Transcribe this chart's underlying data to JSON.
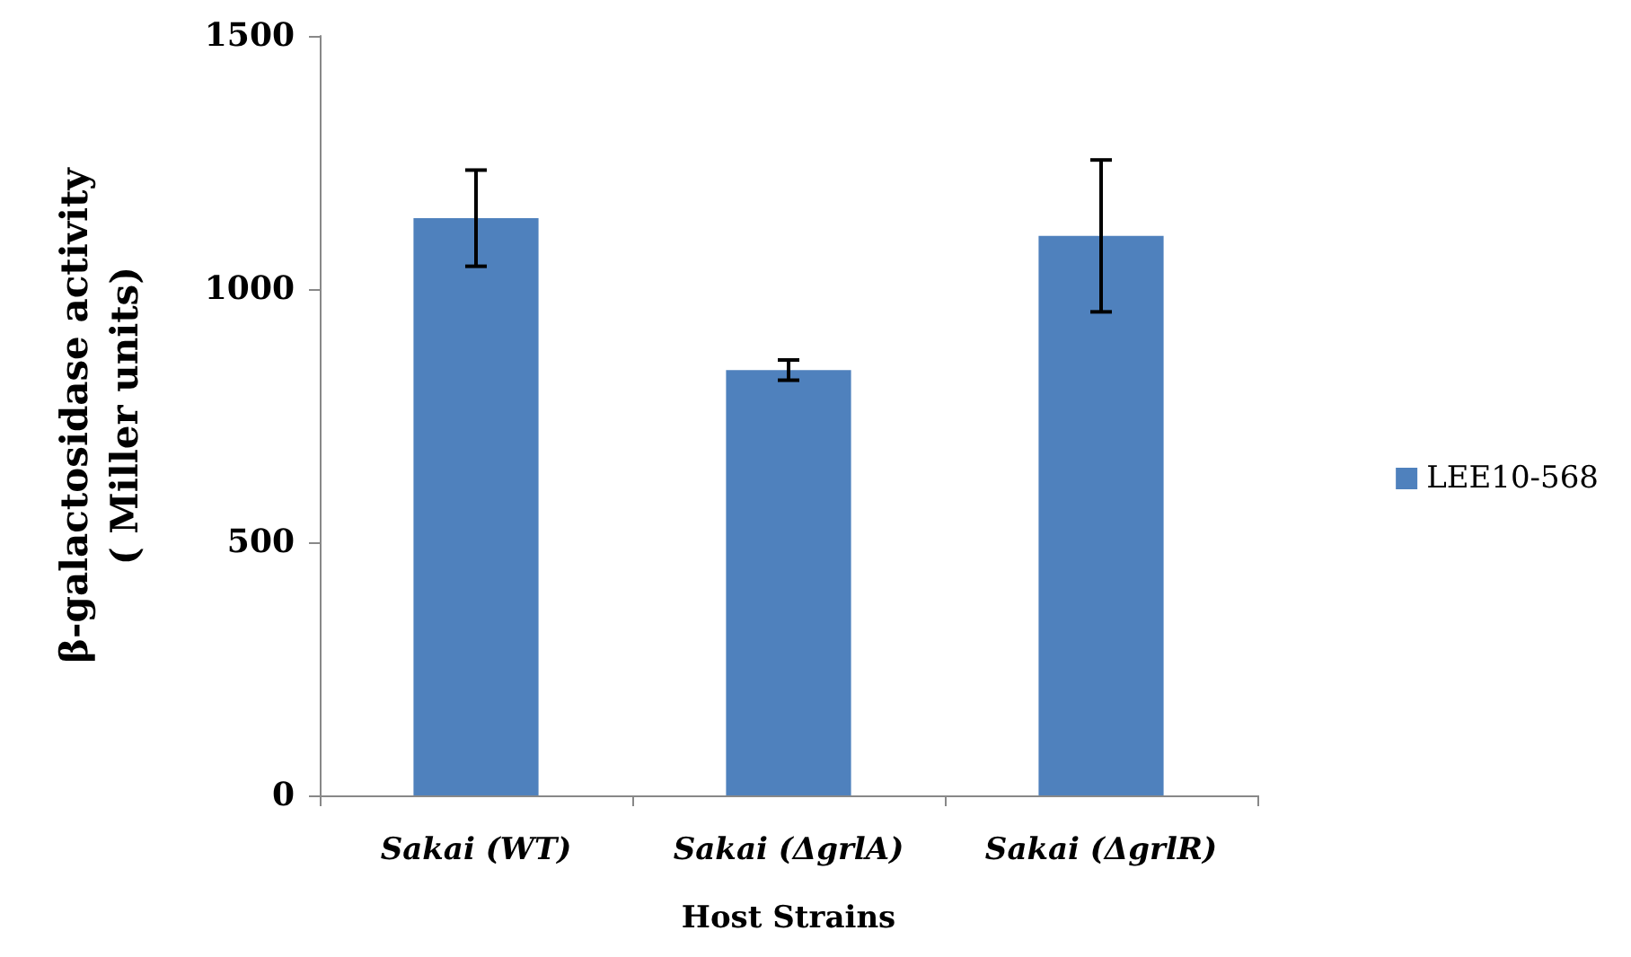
{
  "chart_data": {
    "type": "bar",
    "xlabel": "Host Strains",
    "ylabel": "β-galactosidase activity\n( Miller units)",
    "categories": [
      "Sakai (WT)",
      "Sakai (ΔgrlA)",
      "Sakai (ΔgrlR)"
    ],
    "series": [
      {
        "name": "LEE10-568",
        "color": "#4f81bd",
        "values": [
          1140,
          840,
          1105
        ],
        "errors": [
          95,
          20,
          150
        ]
      }
    ],
    "ylim": [
      0,
      1500
    ],
    "yticks": [
      0,
      500,
      1000,
      1500
    ],
    "grid": false,
    "legend": "right"
  }
}
